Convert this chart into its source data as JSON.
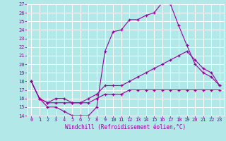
{
  "title": "",
  "xlabel": "Windchill (Refroidissement éolien,°C)",
  "ylabel": "",
  "xlim": [
    -0.5,
    23.5
  ],
  "ylim": [
    14,
    27
  ],
  "xticks": [
    0,
    1,
    2,
    3,
    4,
    5,
    6,
    7,
    8,
    9,
    10,
    11,
    12,
    13,
    14,
    15,
    16,
    17,
    18,
    19,
    20,
    21,
    22,
    23
  ],
  "yticks": [
    14,
    15,
    16,
    17,
    18,
    19,
    20,
    21,
    22,
    23,
    24,
    25,
    26,
    27
  ],
  "bg_color": "#b2e8e8",
  "line_color": "#990099",
  "grid_color": "#ffffff",
  "series": [
    {
      "x": [
        0,
        1,
        2,
        3,
        4,
        5,
        6,
        7,
        8,
        9,
        10,
        11,
        12,
        13,
        14,
        15,
        16,
        17,
        18,
        19,
        20,
        21,
        22,
        23
      ],
      "y": [
        18,
        16,
        15,
        15,
        14.5,
        14,
        14,
        14,
        15,
        21.5,
        23.8,
        24,
        25.2,
        25.2,
        25.7,
        26,
        27.2,
        27,
        24.5,
        22.2,
        20,
        19,
        18.5,
        17.5
      ]
    },
    {
      "x": [
        0,
        1,
        2,
        3,
        4,
        5,
        6,
        7,
        8,
        9,
        10,
        11,
        12,
        13,
        14,
        15,
        16,
        17,
        18,
        19,
        20,
        21,
        22,
        23
      ],
      "y": [
        18,
        16,
        15.5,
        16,
        16,
        15.5,
        15.5,
        16,
        16.5,
        17.5,
        17.5,
        17.5,
        18,
        18.5,
        19,
        19.5,
        20,
        20.5,
        21,
        21.5,
        20.5,
        19.5,
        19,
        17.5
      ]
    },
    {
      "x": [
        0,
        1,
        2,
        3,
        4,
        5,
        6,
        7,
        8,
        9,
        10,
        11,
        12,
        13,
        14,
        15,
        16,
        17,
        18,
        19,
        20,
        21,
        22,
        23
      ],
      "y": [
        18,
        16,
        15.5,
        15.5,
        15.5,
        15.5,
        15.5,
        15.5,
        16,
        16.5,
        16.5,
        16.5,
        17,
        17,
        17,
        17,
        17,
        17,
        17,
        17,
        17,
        17,
        17,
        17
      ]
    }
  ]
}
